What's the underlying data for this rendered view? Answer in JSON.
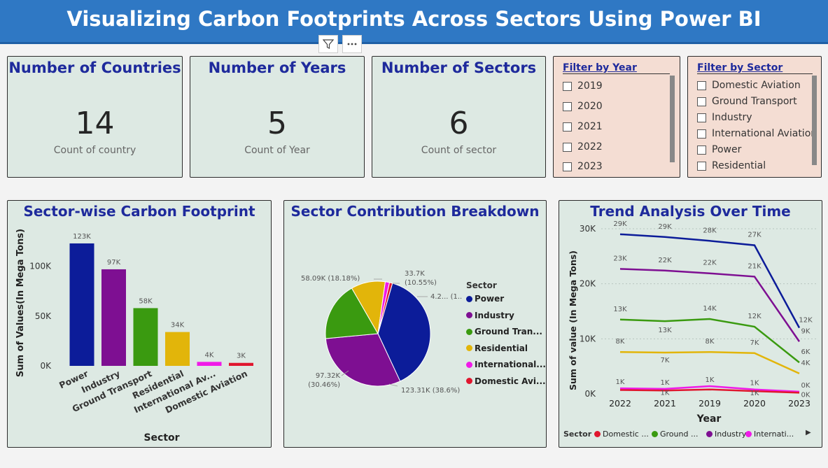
{
  "header": {
    "title": "Visualizing Carbon Footprints Across Sectors Using Power BI"
  },
  "kpis": [
    {
      "title": "Number of Countries",
      "value": "14",
      "label": "Count of country"
    },
    {
      "title": "Number of Years",
      "value": "5",
      "label": "Count of Year"
    },
    {
      "title": "Number of Sectors",
      "value": "6",
      "label": "Count of sector"
    }
  ],
  "year_filter": {
    "title": "Filter by Year",
    "items": [
      "2019",
      "2020",
      "2021",
      "2022",
      "2023"
    ]
  },
  "sector_filter": {
    "title": "Filter by Sector",
    "items": [
      "Domestic Aviation",
      "Ground Transport",
      "Industry",
      "International Aviation",
      "Power",
      "Residential"
    ]
  },
  "colors": {
    "power": "#0c1c99",
    "industry": "#7e0f92",
    "ground": "#3a9a10",
    "residential": "#e2b50a",
    "international": "#f01ae8",
    "domestic": "#e0162e"
  },
  "chart_data": [
    {
      "type": "bar",
      "title": "Sector-wise Carbon Footprint",
      "xlabel": "Sector",
      "ylabel": "Sum of Values(In Mega Tons)",
      "categories": [
        "Power",
        "Industry",
        "Ground Transport",
        "Residential",
        "International Av...",
        "Domestic Aviation"
      ],
      "values": [
        123,
        97,
        58,
        34,
        4,
        3
      ],
      "data_labels": [
        "123K",
        "97K",
        "58K",
        "34K",
        "4K",
        "3K"
      ],
      "y_ticks": [
        "0K",
        "50K",
        "100K"
      ],
      "ylim": [
        0,
        130
      ],
      "colors": [
        "#0c1c99",
        "#7e0f92",
        "#3a9a10",
        "#e2b50a",
        "#f01ae8",
        "#e0162e"
      ]
    },
    {
      "type": "pie",
      "title": "Sector Contribution Breakdown",
      "legend_title": "Sector",
      "slices": [
        {
          "name": "Power",
          "value": 123.31,
          "label": "123.31K (38.6%)"
        },
        {
          "name": "Industry",
          "value": 97.32,
          "label": "97.32K (30.46%)"
        },
        {
          "name": "Ground Tran...",
          "value": 58.09,
          "label": "58.09K (18.18%)"
        },
        {
          "name": "Residential",
          "value": 33.7,
          "label": "33.7K (10.55%)"
        },
        {
          "name": "International...",
          "value": 4.2,
          "label": "4.2... (1...)"
        },
        {
          "name": "Domestic Avi...",
          "value": 2.9,
          "label": ""
        }
      ],
      "colors": [
        "#0c1c99",
        "#7e0f92",
        "#3a9a10",
        "#e2b50a",
        "#f01ae8",
        "#e0162e"
      ]
    },
    {
      "type": "line",
      "title": "Trend Analysis Over Time",
      "xlabel": "Year",
      "ylabel": "Sum of value (In Mega Tons)",
      "categories": [
        "2022",
        "2021",
        "2019",
        "2020",
        "2023"
      ],
      "y_ticks": [
        "0K",
        "10K",
        "20K",
        "30K"
      ],
      "ylim": [
        0,
        30
      ],
      "legend_title": "Sector",
      "legend": [
        "Domestic ...",
        "Ground ...",
        "Industry",
        "Internati..."
      ],
      "series": [
        {
          "name": "Power",
          "color": "#0c1c99",
          "values": [
            29,
            28.5,
            27.8,
            27,
            12
          ],
          "labels": [
            "29K",
            "29K",
            "28K",
            "27K",
            "12K"
          ]
        },
        {
          "name": "Industry",
          "color": "#7e0f92",
          "values": [
            22.7,
            22.4,
            21.9,
            21.3,
            9.5
          ],
          "labels": [
            "23K",
            "22K",
            "22K",
            "21K",
            "9K"
          ]
        },
        {
          "name": "Ground Transport",
          "color": "#3a9a10",
          "values": [
            13.5,
            13.2,
            13.6,
            12.2,
            5.7
          ],
          "labels": [
            "13K",
            "13K",
            "14K",
            "12K",
            "6K"
          ]
        },
        {
          "name": "Residential",
          "color": "#e2b50a",
          "values": [
            7.6,
            7.5,
            7.6,
            7.4,
            3.7
          ],
          "labels": [
            "8K",
            "7K",
            "8K",
            "7K",
            "4K"
          ]
        },
        {
          "name": "International Aviation",
          "color": "#f01ae8",
          "values": [
            1.0,
            0.9,
            1.4,
            0.8,
            0.4
          ],
          "labels": [
            "1K",
            "1K",
            "1K",
            "1K",
            "0K"
          ]
        },
        {
          "name": "Domestic Aviation",
          "color": "#e0162e",
          "values": [
            0.7,
            0.6,
            0.8,
            0.5,
            0.2
          ],
          "labels": [
            "",
            "1K",
            "",
            "1K",
            "0K"
          ]
        }
      ]
    }
  ]
}
